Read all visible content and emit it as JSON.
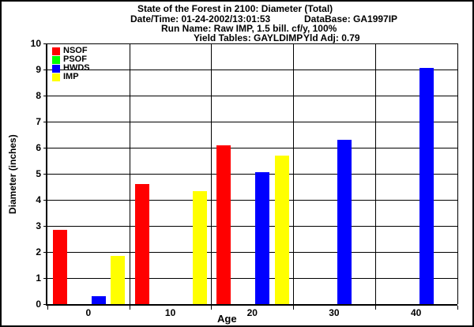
{
  "window": {
    "background": "#ffffff",
    "border_color": "#000000"
  },
  "header": {
    "title": "State of the Forest in 2100: Diameter (Total)",
    "date_time": "Date/Time: 01-24-2002/13:01:53",
    "database": "DataBase: GA1997IP",
    "run_name": "Run Name: Raw IMP, 1.5 bill. cf/y, 100%",
    "yield_tables": "Yield Tables: GAYLDIMP",
    "yld_adj": "Yld Adj: 0.79"
  },
  "chart_data": {
    "type": "bar",
    "title": "State of the Forest in 2100: Diameter (Total)",
    "xlabel": "Age",
    "ylabel": "Diameter (inches)",
    "categories": [
      "0",
      "10",
      "20",
      "30",
      "40"
    ],
    "ylim": [
      0,
      10
    ],
    "ytick_step": 1,
    "grid": true,
    "legend_position": "top-left",
    "series": [
      {
        "name": "NSOF",
        "color": "#ff0000",
        "values": [
          2.85,
          4.6,
          6.1,
          null,
          null
        ]
      },
      {
        "name": "PSOF",
        "color": "#00ff00",
        "values": [
          null,
          null,
          null,
          null,
          null
        ]
      },
      {
        "name": "HWDS",
        "color": "#0000ff",
        "values": [
          0.3,
          null,
          5.05,
          6.3,
          9.05
        ]
      },
      {
        "name": "IMP",
        "color": "#ffff00",
        "values": [
          1.85,
          4.35,
          5.7,
          null,
          null
        ]
      }
    ]
  }
}
